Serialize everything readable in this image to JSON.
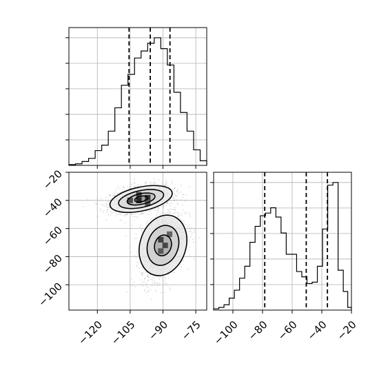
{
  "chart_data": {
    "type": "corner",
    "parameters": [
      "",
      ""
    ],
    "grid": true,
    "panels": [
      {
        "id": "hist-param-1",
        "type": "histogram",
        "x_range": [
          -133,
          -70
        ],
        "bin_edges": [
          -133,
          -130,
          -127,
          -124,
          -121,
          -118,
          -115,
          -112,
          -109,
          -106,
          -103,
          -100,
          -97,
          -94,
          -91,
          -88,
          -85,
          -82,
          -79,
          -76,
          -73,
          -70
        ],
        "counts": [
          1,
          2,
          5,
          9,
          19,
          26,
          44,
          74,
          103,
          117,
          138,
          147,
          157,
          164,
          150,
          129,
          94,
          68,
          44,
          20,
          6
        ],
        "quantiles": [
          -105.5,
          -95.8,
          -86.8
        ],
        "tick_labels_shown": false
      },
      {
        "id": "hist-param-2",
        "type": "histogram",
        "x_range": [
          -113,
          -20
        ],
        "bin_edges": [
          -113,
          -109.5,
          -106,
          -102.5,
          -99,
          -95.5,
          -92,
          -88.5,
          -85,
          -81.5,
          -78,
          -74.5,
          -71,
          -67.5,
          -64,
          -60.5,
          -57,
          -53.5,
          -50,
          -46.5,
          -43,
          -39.5,
          -36,
          -32.5,
          -29,
          -25.5,
          -22.5,
          -20
        ],
        "counts": [
          1,
          2,
          4,
          9,
          15,
          24,
          33,
          51,
          63,
          71,
          73,
          77,
          70,
          58,
          42,
          42,
          29,
          25,
          20,
          21,
          33,
          61,
          94,
          96,
          30,
          14,
          2
        ],
        "quantiles": [
          -78.5,
          -50.5,
          -36.2
        ],
        "x_ticks": [
          -100,
          -80,
          -60,
          -40,
          -20
        ],
        "x_tick_labels": [
          "−100",
          "−80",
          "−60",
          "−40",
          "−20"
        ]
      },
      {
        "id": "joint-param-1-param-2",
        "type": "2d-density",
        "x_range": [
          -133,
          -70
        ],
        "y_range": [
          -118,
          -20
        ],
        "x_ticks": [
          -120,
          -105,
          -90,
          -75
        ],
        "x_tick_labels": [
          "−120",
          "−105",
          "−90",
          "−75"
        ],
        "y_ticks": [
          -20,
          -40,
          -60,
          -80,
          -100
        ],
        "y_tick_labels": [
          "−20",
          "−40",
          "−60",
          "−80",
          "−100"
        ],
        "clusters": [
          {
            "center": [
              -100,
              -39
            ],
            "spread": [
              7,
              4.5
            ],
            "tilt": 0.12
          },
          {
            "center": [
              -90,
              -72
            ],
            "spread": [
              5,
              11
            ],
            "tilt": 0.15
          }
        ],
        "contour_levels": [
          {
            "cluster": 0,
            "scale": [
              14.5,
              8.5
            ]
          },
          {
            "cluster": 0,
            "scale": [
              10.5,
              6.0
            ]
          },
          {
            "cluster": 0,
            "scale": [
              6.5,
              3.8
            ]
          },
          {
            "cluster": 0,
            "scale": [
              3.0,
              2.0
            ]
          },
          {
            "cluster": 1,
            "scale": [
              10.5,
              22
            ]
          },
          {
            "cluster": 1,
            "scale": [
              7.0,
              14.5
            ]
          },
          {
            "cluster": 1,
            "scale": [
              3.8,
              7.5
            ]
          }
        ],
        "density_cells": [
          {
            "x": -101,
            "y": -40,
            "level": 1.0
          },
          {
            "x": -97,
            "y": -38,
            "level": 0.9
          },
          {
            "x": -105,
            "y": -40,
            "level": 0.7
          },
          {
            "x": -101,
            "y": -36,
            "level": 0.75
          },
          {
            "x": -97,
            "y": -42,
            "level": 0.6
          },
          {
            "x": -91,
            "y": -68,
            "level": 0.8
          },
          {
            "x": -89,
            "y": -72,
            "level": 0.75
          },
          {
            "x": -91,
            "y": -76,
            "level": 0.6
          },
          {
            "x": -87,
            "y": -64,
            "level": 0.5
          }
        ]
      }
    ]
  }
}
